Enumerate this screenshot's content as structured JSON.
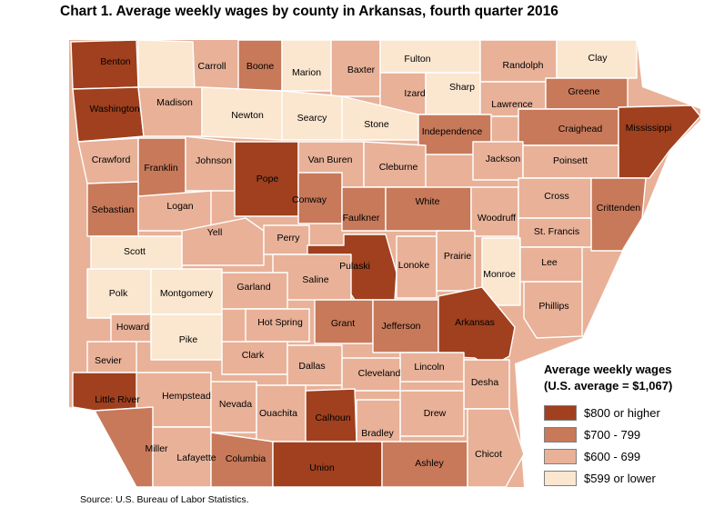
{
  "title": "Chart 1. Average weekly wages by county in Arkansas, fourth quarter 2016",
  "legend": {
    "title_line1": "Average weekly wages",
    "title_line2": "(U.S. average = $1,067)",
    "items": [
      {
        "label": "$800 or higher",
        "color": "#a0401e"
      },
      {
        "label": "$700 - 799",
        "color": "#c7795a"
      },
      {
        "label": "$600 - 699",
        "color": "#e8b198"
      },
      {
        "label": "$599 or lower",
        "color": "#fbe6cf"
      }
    ]
  },
  "source": "Source: U.S. Bureau of Labor Statistics.",
  "counties": {
    "benton": {
      "name": "Benton",
      "category": "$800 or higher"
    },
    "carroll": {
      "name": "Carroll",
      "category": "$599 or lower"
    },
    "boone": {
      "name": "Boone",
      "category": "$700 - 799"
    },
    "marion": {
      "name": "Marion",
      "category": "$599 or lower"
    },
    "baxter": {
      "name": "Baxter",
      "category": "$600 - 699"
    },
    "fulton": {
      "name": "Fulton",
      "category": "$599 or lower"
    },
    "randolph": {
      "name": "Randolph",
      "category": "$600 - 699"
    },
    "clay": {
      "name": "Clay",
      "category": "$599 or lower"
    },
    "washington": {
      "name": "Washington",
      "category": "$800 or higher"
    },
    "madison": {
      "name": "Madison",
      "category": "$600 - 699"
    },
    "newton": {
      "name": "Newton",
      "category": "$599 or lower"
    },
    "searcy": {
      "name": "Searcy",
      "category": "$599 or lower"
    },
    "izard": {
      "name": "Izard",
      "category": "$600 - 699"
    },
    "sharp": {
      "name": "Sharp",
      "category": "$599 or lower"
    },
    "lawrence": {
      "name": "Lawrence",
      "category": "$600 - 699"
    },
    "greene": {
      "name": "Greene",
      "category": "$700 - 799"
    },
    "stone": {
      "name": "Stone",
      "category": "$599 or lower"
    },
    "independence": {
      "name": "Independence",
      "category": "$700 - 799"
    },
    "craighead": {
      "name": "Craighead",
      "category": "$700 - 799"
    },
    "mississippi": {
      "name": "Mississippi",
      "category": "$800 or higher"
    },
    "crawford": {
      "name": "Crawford",
      "category": "$600 - 699"
    },
    "franklin": {
      "name": "Franklin",
      "category": "$700 - 799"
    },
    "johnson": {
      "name": "Johnson",
      "category": "$600 - 699"
    },
    "pope": {
      "name": "Pope",
      "category": "$800 or higher"
    },
    "van_buren": {
      "name": "Van Buren",
      "category": "$600 - 699"
    },
    "cleburne": {
      "name": "Cleburne",
      "category": "$600 - 699"
    },
    "jackson": {
      "name": "Jackson",
      "category": "$600 - 699"
    },
    "poinsett": {
      "name": "Poinsett",
      "category": "$600 - 699"
    },
    "sebastian": {
      "name": "Sebastian",
      "category": "$700 - 799"
    },
    "logan": {
      "name": "Logan",
      "category": "$600 - 699"
    },
    "conway": {
      "name": "Conway",
      "category": "$700 - 799"
    },
    "faulkner": {
      "name": "Faulkner",
      "category": "$700 - 799"
    },
    "white": {
      "name": "White",
      "category": "$700 - 799"
    },
    "woodruff": {
      "name": "Woodruff",
      "category": "$600 - 699"
    },
    "cross": {
      "name": "Cross",
      "category": "$600 - 699"
    },
    "crittenden": {
      "name": "Crittenden",
      "category": "$700 - 799"
    },
    "yell": {
      "name": "Yell",
      "category": "$600 - 699"
    },
    "perry": {
      "name": "Perry",
      "category": "$600 - 699"
    },
    "pulaski": {
      "name": "Pulaski",
      "category": "$800 or higher"
    },
    "lonoke": {
      "name": "Lonoke",
      "category": "$600 - 699"
    },
    "prairie": {
      "name": "Prairie",
      "category": "$600 - 699"
    },
    "st_francis": {
      "name": "St. Francis",
      "category": "$600 - 699"
    },
    "scott": {
      "name": "Scott",
      "category": "$599 or lower"
    },
    "saline": {
      "name": "Saline",
      "category": "$600 - 699"
    },
    "monroe": {
      "name": "Monroe",
      "category": "$599 or lower"
    },
    "lee": {
      "name": "Lee",
      "category": "$600 - 699"
    },
    "polk": {
      "name": "Polk",
      "category": "$599 or lower"
    },
    "montgomery": {
      "name": "Montgomery",
      "category": "$599 or lower"
    },
    "garland": {
      "name": "Garland",
      "category": "$600 - 699"
    },
    "phillips": {
      "name": "Phillips",
      "category": "$600 - 699"
    },
    "howard": {
      "name": "Howard",
      "category": "$600 - 699"
    },
    "hot_spring": {
      "name": "Hot Spring",
      "category": "$600 - 699"
    },
    "grant": {
      "name": "Grant",
      "category": "$700 - 799"
    },
    "jefferson": {
      "name": "Jefferson",
      "category": "$700 - 799"
    },
    "arkansas": {
      "name": "Arkansas",
      "category": "$800 or higher"
    },
    "pike": {
      "name": "Pike",
      "category": "$599 or lower"
    },
    "clark": {
      "name": "Clark",
      "category": "$600 - 699"
    },
    "sevier": {
      "name": "Sevier",
      "category": "$600 - 699"
    },
    "dallas": {
      "name": "Dallas",
      "category": "$600 - 699"
    },
    "lincoln": {
      "name": "Lincoln",
      "category": "$600 - 699"
    },
    "cleveland": {
      "name": "Cleveland",
      "category": "$600 - 699"
    },
    "desha": {
      "name": "Desha",
      "category": "$600 - 699"
    },
    "little_river": {
      "name": "Little River",
      "category": "$800 or higher"
    },
    "hempstead": {
      "name": "Hempstead",
      "category": "$600 - 699"
    },
    "nevada": {
      "name": "Nevada",
      "category": "$600 - 699"
    },
    "ouachita": {
      "name": "Ouachita",
      "category": "$600 - 699"
    },
    "calhoun": {
      "name": "Calhoun",
      "category": "$800 or higher"
    },
    "drew": {
      "name": "Drew",
      "category": "$600 - 699"
    },
    "bradley": {
      "name": "Bradley",
      "category": "$600 - 699"
    },
    "miller": {
      "name": "Miller",
      "category": "$700 - 799"
    },
    "lafayette": {
      "name": "Lafayette",
      "category": "$600 - 699"
    },
    "columbia": {
      "name": "Columbia",
      "category": "$700 - 799"
    },
    "union": {
      "name": "Union",
      "category": "$800 or higher"
    },
    "ashley": {
      "name": "Ashley",
      "category": "$700 - 799"
    },
    "chicot": {
      "name": "Chicot",
      "category": "$600 - 699"
    }
  }
}
